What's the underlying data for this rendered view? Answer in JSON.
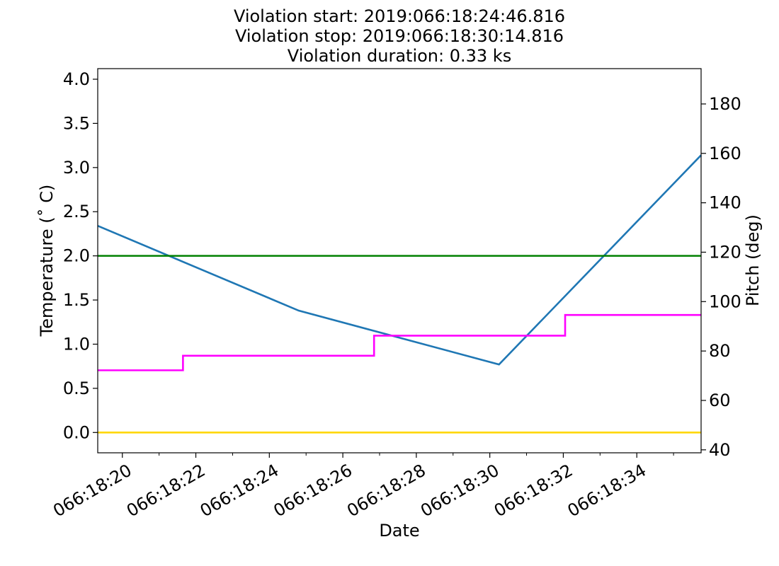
{
  "chart_data": {
    "type": "line",
    "title_lines": [
      "Violation start: 2019:066:18:24:46.816",
      "Violation stop: 2019:066:18:30:14.816",
      "Violation duration: 0.33 ks"
    ],
    "xlabel": "Date",
    "ylabel_left": "Temperature ($^\\circ$C)",
    "ylabel_left_display": "Temperature (˚ C)",
    "ylabel_right": "Pitch (deg)",
    "x_unit": "minutes after 066:18:00",
    "xlim": [
      19.33,
      35.75
    ],
    "ylim_left": [
      -0.23,
      4.12
    ],
    "ylim_right": [
      38.8,
      194.3
    ],
    "x_ticks": [
      {
        "x": 20,
        "label": "066:18:20"
      },
      {
        "x": 22,
        "label": "066:18:22"
      },
      {
        "x": 24,
        "label": "066:18:24"
      },
      {
        "x": 26,
        "label": "066:18:26"
      },
      {
        "x": 28,
        "label": "066:18:28"
      },
      {
        "x": 30,
        "label": "066:18:30"
      },
      {
        "x": 32,
        "label": "066:18:32"
      },
      {
        "x": 34,
        "label": "066:18:34"
      }
    ],
    "x_minor_ticks": [
      21,
      23,
      25,
      27,
      29,
      31,
      33,
      35
    ],
    "y_left_ticks": [
      {
        "y": 0.0,
        "label": "0.0"
      },
      {
        "y": 0.5,
        "label": "0.5"
      },
      {
        "y": 1.0,
        "label": "1.0"
      },
      {
        "y": 1.5,
        "label": "1.5"
      },
      {
        "y": 2.0,
        "label": "2.0"
      },
      {
        "y": 2.5,
        "label": "2.5"
      },
      {
        "y": 3.0,
        "label": "3.0"
      },
      {
        "y": 3.5,
        "label": "3.5"
      },
      {
        "y": 4.0,
        "label": "4.0"
      }
    ],
    "y_right_ticks": [
      {
        "y": 40,
        "label": "40"
      },
      {
        "y": 60,
        "label": "60"
      },
      {
        "y": 80,
        "label": "80"
      },
      {
        "y": 100,
        "label": "100"
      },
      {
        "y": 120,
        "label": "120"
      },
      {
        "y": 140,
        "label": "140"
      },
      {
        "y": 160,
        "label": "160"
      },
      {
        "y": 180,
        "label": "180"
      }
    ],
    "series": [
      {
        "key": "temperature",
        "axis": "left",
        "color": "#1f77b4",
        "step": false,
        "points": [
          [
            19.33,
            2.34
          ],
          [
            24.8,
            1.38
          ],
          [
            30.25,
            0.77
          ],
          [
            35.75,
            3.14
          ]
        ]
      },
      {
        "key": "pitch",
        "axis": "right",
        "color": "#ff00ff",
        "step": true,
        "points": [
          [
            19.33,
            72.2
          ],
          [
            21.65,
            72.2
          ],
          [
            21.65,
            78.1
          ],
          [
            26.85,
            78.1
          ],
          [
            26.85,
            86.2
          ],
          [
            32.05,
            86.2
          ],
          [
            32.05,
            94.6
          ],
          [
            35.75,
            94.6
          ]
        ]
      },
      {
        "key": "limit-high",
        "axis": "left",
        "color": "#008000",
        "step": false,
        "points": [
          [
            19.33,
            2.0
          ],
          [
            35.75,
            2.0
          ]
        ]
      },
      {
        "key": "limit-low",
        "axis": "left",
        "color": "#ffd700",
        "step": false,
        "points": [
          [
            19.33,
            0.0
          ],
          [
            35.75,
            0.0
          ]
        ]
      }
    ],
    "grid": false,
    "legend": "none"
  }
}
